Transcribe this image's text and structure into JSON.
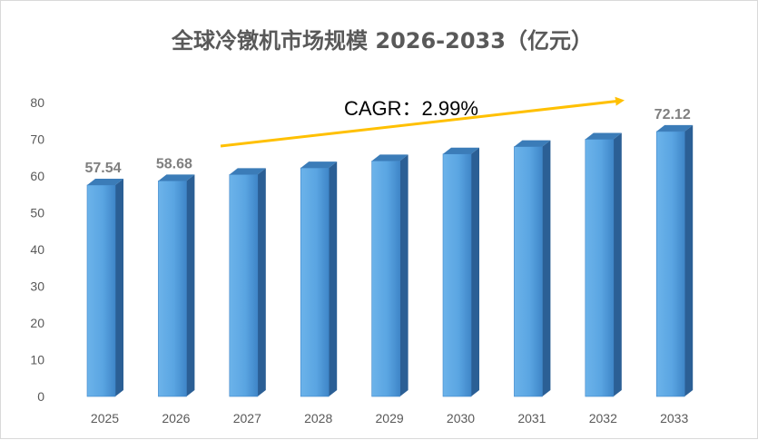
{
  "chart_data": {
    "type": "bar",
    "title": "全球冷镦机市场规模 2026-2033（亿元）",
    "categories": [
      "2025",
      "2026",
      "2027",
      "2028",
      "2029",
      "2030",
      "2031",
      "2032",
      "2033"
    ],
    "values": [
      57.54,
      58.68,
      60.4,
      62.2,
      64.1,
      66.0,
      68.0,
      70.0,
      72.12
    ],
    "data_labels": [
      "57.54",
      "58.68",
      "",
      "",
      "",
      "",
      "",
      "",
      "72.12"
    ],
    "y_ticks": [
      "0",
      "10",
      "20",
      "30",
      "40",
      "50",
      "60",
      "70",
      "80"
    ],
    "ylim": [
      0,
      80
    ],
    "grid": false,
    "legend": "none",
    "annotation": "CAGR：2.99%",
    "colors": {
      "bar_front": "#5aa5e2",
      "bar_front_dark": "#3f86c8",
      "bar_top": "#3b7cb8",
      "bar_side": "#2b5f95",
      "arrow": "#ffc000",
      "text": "#595959",
      "data_label": "#7f7f7f"
    }
  }
}
